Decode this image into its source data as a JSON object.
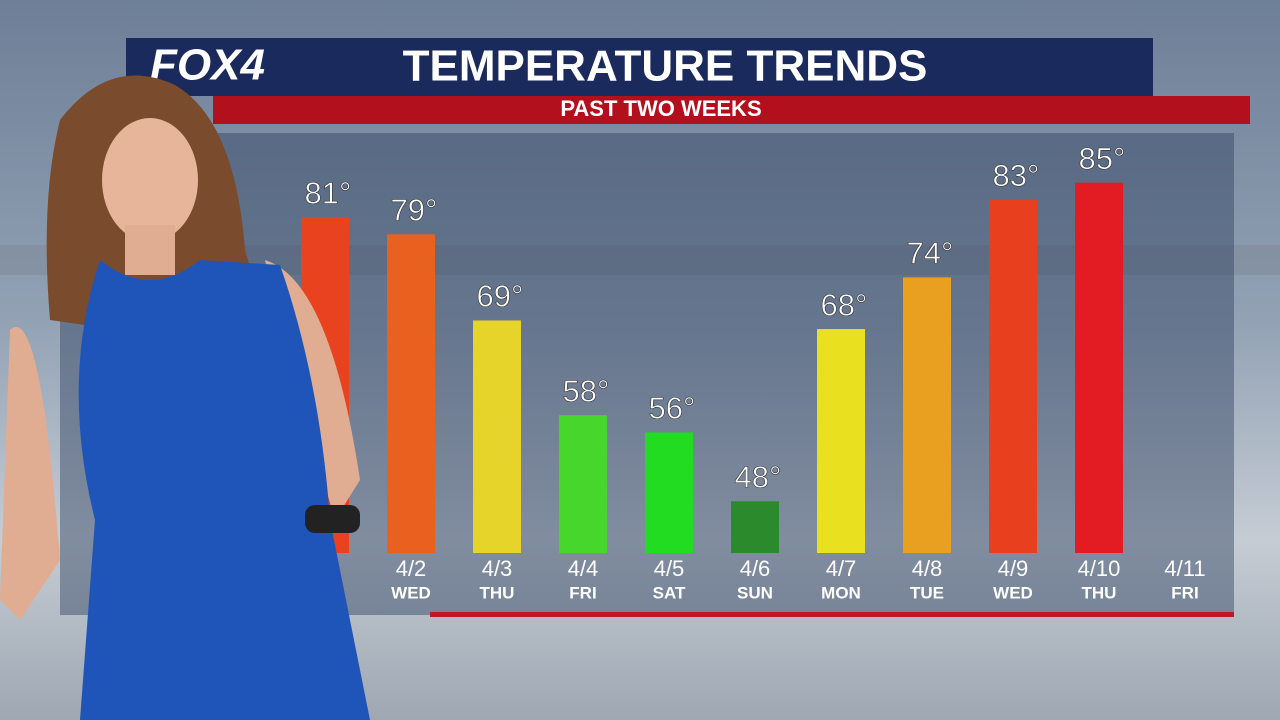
{
  "header": {
    "logo": "FOX4",
    "title": "TEMPERATURE TRENDS",
    "subtitle": "PAST TWO WEEKS"
  },
  "chart_data": {
    "type": "bar",
    "categories": [
      null,
      "4/2",
      "4/3",
      "4/4",
      "4/5",
      "4/6",
      "4/7",
      "4/8",
      "4/9",
      "4/10",
      "4/11"
    ],
    "day_labels": [
      null,
      "WED",
      "THU",
      "FRI",
      "SAT",
      "SUN",
      "MON",
      "TUE",
      "WED",
      "THU",
      "FRI"
    ],
    "values": [
      81,
      79,
      69,
      58,
      56,
      48,
      68,
      74,
      83,
      85,
      null
    ],
    "value_labels": [
      "81°",
      "79°",
      "69°",
      "58°",
      "56°",
      "48°",
      "68°",
      "74°",
      "83°",
      "85°",
      null
    ],
    "colors": [
      "#e9421f",
      "#e8611f",
      "#e6d42a",
      "#46d62c",
      "#22dc22",
      "#2b8a2b",
      "#e9e020",
      "#e9a020",
      "#e8401f",
      "#e31b22",
      null
    ],
    "ylim": [
      42,
      91
    ]
  }
}
